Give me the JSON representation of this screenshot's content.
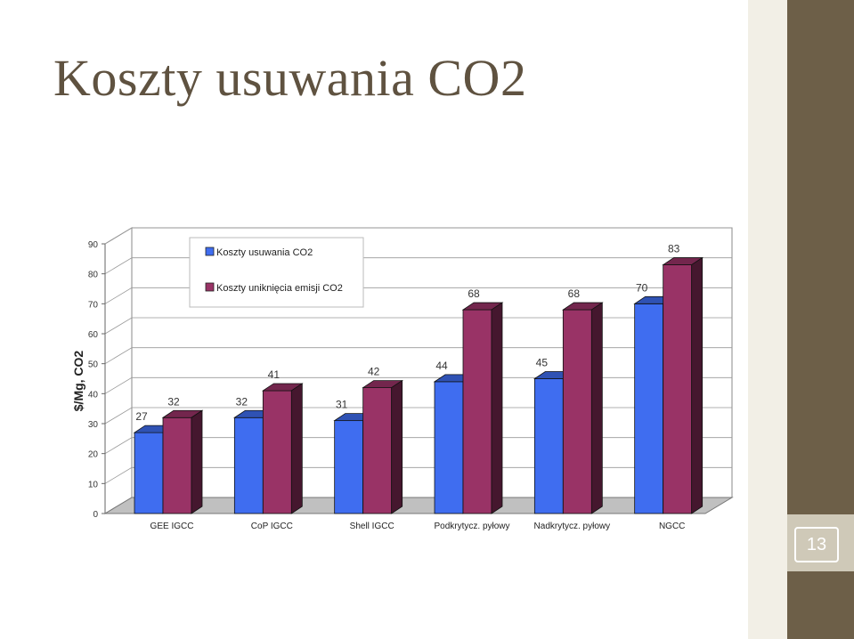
{
  "slide": {
    "title": "Koszty usuwania CO2",
    "page_number": "13"
  },
  "colors": {
    "background": "#ffffff",
    "title": "#5f5240",
    "side_band": "#6d5f48",
    "series1": "#3f6df0",
    "series2": "#993366"
  },
  "chart_data": {
    "type": "bar",
    "categories": [
      "GEE IGCC",
      "CoP IGCC",
      "Shell IGCC",
      "Podkrytycz. pyłowy",
      "Nadkrytycz. pyłowy",
      "NGCC"
    ],
    "series": [
      {
        "name": "Koszty usuwania CO2",
        "values": [
          27,
          32,
          31,
          44,
          45,
          70
        ]
      },
      {
        "name": "Koszty uniknięcia emisji CO2",
        "values": [
          32,
          41,
          42,
          68,
          68,
          83
        ]
      }
    ],
    "ylabel": "$/Mg, CO2",
    "xlabel": "",
    "ylim": [
      0,
      90
    ],
    "yticks": [
      "0",
      "10",
      "20",
      "30",
      "40",
      "50",
      "60",
      "70",
      "80",
      "90"
    ],
    "grid": true,
    "legend": "top-left",
    "style": "3d-clustered-column"
  }
}
